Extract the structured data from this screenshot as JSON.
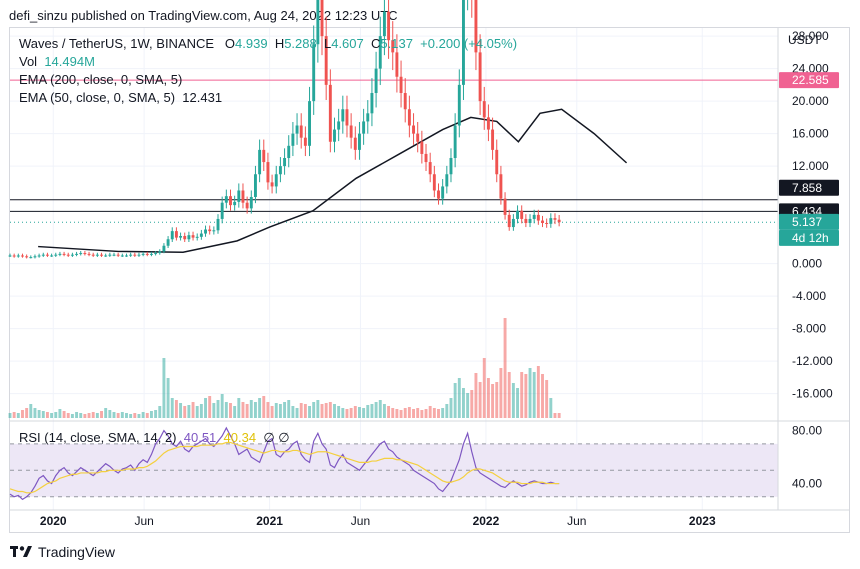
{
  "header": {
    "publisher_line": "defi_sinzu published on TradingView.com, Aug 24, 2022 12:23 UTC"
  },
  "legend": {
    "symbol": "Waves / TetherUS, 1W, BINANCE",
    "o_label": "O",
    "o_value": "4.939",
    "h_label": "H",
    "h_value": "5.288",
    "l_label": "L",
    "l_value": "4.607",
    "c_label": "C",
    "c_value": "5.137",
    "change": "+0.200 (+4.05%)",
    "vol_label": "Vol",
    "vol_value": "14.494M",
    "ema200_label": "EMA (200, close, 0, SMA, 5)",
    "ema50_label": "EMA (50, close, 0, SMA, 5)",
    "ema50_value": "12.431"
  },
  "rsi_legend": {
    "label": "RSI (14, close, SMA, 14, 2)",
    "rsi_value": "40.51",
    "ma_value": "40.34",
    "extra": "∅ ∅"
  },
  "currency": "USDT",
  "brand": {
    "name": "TradingView"
  },
  "colors": {
    "up": "#26a69a",
    "down": "#ef5350",
    "ema50": "#131722",
    "rsi": "#7e57c2",
    "rsi_ma": "#f4d03f",
    "level_pink": "#f06292",
    "rsi_band": "#ede7f6"
  },
  "chart_data": [
    {
      "type": "line",
      "title": "Waves / TetherUS, 1W, BINANCE",
      "price_axis_ticks": [
        "28.000",
        "24.000",
        "20.000",
        "16.000",
        "12.000",
        "0.000",
        "-4.000",
        "-8.000",
        "-12.000",
        "-16.000"
      ],
      "time_axis_ticks": [
        "2020",
        "Jun",
        "2021",
        "Jun",
        "2022",
        "Jun",
        "2023"
      ],
      "ylim": [
        -19,
        29
      ],
      "price_labels": [
        {
          "text": "22.585",
          "value": 22.585,
          "style": "pink"
        },
        {
          "text": "7.858",
          "value": 7.858,
          "style": "black"
        },
        {
          "text": "6.434",
          "value": 6.434,
          "style": "black"
        },
        {
          "text": "5.137",
          "value": 5.137,
          "style": "teal"
        },
        {
          "text": "4d 12h",
          "value": 5.137,
          "style": "teal-sub"
        }
      ],
      "horizontal_lines": [
        {
          "value": 22.585,
          "color": "#f06292"
        },
        {
          "value": 7.858,
          "color": "#131722"
        },
        {
          "value": 6.434,
          "color": "#131722"
        }
      ],
      "series": [
        {
          "name": "Waves / TetherUS",
          "kind": "candles",
          "x_start": 2019.8,
          "x_step": 0.01923,
          "close": [
            1.0,
            0.9,
            1.0,
            0.9,
            0.8,
            0.8,
            0.9,
            1.0,
            1.1,
            1.0,
            1.0,
            1.1,
            1.2,
            1.1,
            1.0,
            1.1,
            1.2,
            1.3,
            1.2,
            1.1,
            1.0,
            1.1,
            1.0,
            1.0,
            1.1,
            1.1,
            1.0,
            1.0,
            1.0,
            1.1,
            1.0,
            1.1,
            1.2,
            1.1,
            1.2,
            1.3,
            1.5,
            2.2,
            3.0,
            4.0,
            3.2,
            3.4,
            3.0,
            3.5,
            3.2,
            3.3,
            3.7,
            4.2,
            4.0,
            4.1,
            5.5,
            7.5,
            8.3,
            7.2,
            7.6,
            9.0,
            7.5,
            6.8,
            8.2,
            11.0,
            14.0,
            12.5,
            10.0,
            9.5,
            11.0,
            12.0,
            13.0,
            14.5,
            16.0,
            17.0,
            15.5,
            14.5,
            20.0,
            27.0,
            35.0,
            28.0,
            22.0,
            15.0,
            16.5,
            17.5,
            19.0,
            17.0,
            15.5,
            14.0,
            16.0,
            17.5,
            18.5,
            21.0,
            24.0,
            28.0,
            31.0,
            27.5,
            26.0,
            23.0,
            21.0,
            19.0,
            17.0,
            16.0,
            15.0,
            13.5,
            12.5,
            11.0,
            9.0,
            8.0,
            9.5,
            11.0,
            13.0,
            17.0,
            22.0,
            34.0,
            38.0,
            33.0,
            26.0,
            20.0,
            18.0,
            16.5,
            14.0,
            11.0,
            8.0,
            6.0,
            4.5,
            5.5,
            6.5,
            5.5,
            5.0,
            5.5,
            6.0,
            5.3,
            5.0,
            4.9,
            5.6,
            5.4,
            5.1
          ]
        },
        {
          "name": "EMA (50, close, 0, SMA, 5)",
          "kind": "line",
          "x": [
            2019.93,
            2020.3,
            2020.6,
            2020.85,
            2021.0,
            2021.2,
            2021.4,
            2021.6,
            2021.8,
            2021.93,
            2022.05,
            2022.15,
            2022.25,
            2022.35,
            2022.5,
            2022.65
          ],
          "values": [
            2.1,
            1.5,
            1.4,
            2.8,
            4.5,
            6.5,
            10.5,
            13.5,
            16.5,
            18.0,
            17.5,
            15.0,
            18.5,
            19.0,
            16.0,
            12.4
          ]
        },
        {
          "name": "Vol",
          "kind": "volume",
          "values_relative": [
            0.05,
            0.06,
            0.05,
            0.08,
            0.1,
            0.14,
            0.1,
            0.08,
            0.07,
            0.06,
            0.05,
            0.06,
            0.09,
            0.07,
            0.05,
            0.04,
            0.06,
            0.05,
            0.04,
            0.05,
            0.06,
            0.05,
            0.07,
            0.1,
            0.08,
            0.06,
            0.05,
            0.06,
            0.05,
            0.04,
            0.05,
            0.04,
            0.06,
            0.05,
            0.07,
            0.08,
            0.12,
            0.6,
            0.4,
            0.2,
            0.18,
            0.15,
            0.12,
            0.13,
            0.16,
            0.12,
            0.14,
            0.2,
            0.22,
            0.15,
            0.18,
            0.24,
            0.16,
            0.15,
            0.12,
            0.2,
            0.16,
            0.14,
            0.18,
            0.16,
            0.2,
            0.22,
            0.16,
            0.12,
            0.15,
            0.14,
            0.16,
            0.18,
            0.12,
            0.1,
            0.15,
            0.14,
            0.12,
            0.16,
            0.18,
            0.14,
            0.15,
            0.16,
            0.14,
            0.12,
            0.1,
            0.09,
            0.1,
            0.12,
            0.11,
            0.1,
            0.13,
            0.14,
            0.16,
            0.18,
            0.14,
            0.12,
            0.1,
            0.09,
            0.08,
            0.1,
            0.11,
            0.09,
            0.1,
            0.08,
            0.09,
            0.12,
            0.1,
            0.09,
            0.1,
            0.14,
            0.2,
            0.35,
            0.4,
            0.3,
            0.25,
            0.28,
            0.45,
            0.36,
            0.6,
            0.4,
            0.34,
            0.36,
            0.5,
            1.0,
            0.46,
            0.35,
            0.3,
            0.46,
            0.44,
            0.5,
            0.46,
            0.52,
            0.44,
            0.38,
            0.2
          ]
        }
      ]
    },
    {
      "type": "line",
      "title": "RSI (14, close, SMA, 14, 2)",
      "y_axis_ticks": [
        "80.00",
        "40.00"
      ],
      "ylim": [
        20,
        85
      ],
      "bands": [
        30,
        50,
        70
      ],
      "series": [
        {
          "name": "RSI",
          "x_start": 2019.8,
          "x_step": 0.01923,
          "values": [
            32,
            30,
            31,
            28,
            30,
            33,
            38,
            44,
            46,
            42,
            40,
            46,
            50,
            52,
            48,
            46,
            49,
            52,
            50,
            48,
            46,
            49,
            52,
            55,
            53,
            50,
            48,
            51,
            52,
            54,
            50,
            55,
            58,
            56,
            62,
            70,
            74,
            80,
            76,
            70,
            68,
            72,
            66,
            64,
            68,
            70,
            72,
            74,
            70,
            68,
            72,
            76,
            82,
            76,
            70,
            62,
            64,
            66,
            60,
            58,
            56,
            64,
            72,
            74,
            62,
            60,
            64,
            66,
            70,
            72,
            62,
            58,
            56,
            72,
            78,
            70,
            66,
            54,
            52,
            58,
            62,
            56,
            54,
            52,
            50,
            54,
            58,
            62,
            66,
            70,
            72,
            66,
            64,
            60,
            58,
            56,
            54,
            50,
            48,
            46,
            44,
            42,
            40,
            36,
            34,
            38,
            42,
            50,
            58,
            70,
            78,
            64,
            52,
            48,
            46,
            44,
            42,
            40,
            38,
            37,
            40,
            42,
            40,
            38,
            39,
            41,
            42,
            41,
            40,
            40,
            41,
            40,
            40
          ]
        },
        {
          "name": "RSI MA",
          "x_start": 2019.8,
          "x_step": 0.01923,
          "values": [
            36,
            35,
            34,
            34,
            33,
            33,
            34,
            36,
            38,
            40,
            41,
            42,
            44,
            45,
            46,
            47,
            47,
            48,
            48,
            48,
            48,
            48,
            49,
            49,
            50,
            50,
            50,
            50,
            51,
            51,
            51,
            52,
            52,
            53,
            55,
            57,
            60,
            63,
            65,
            66,
            67,
            68,
            68,
            68,
            68,
            68,
            69,
            69,
            69,
            69,
            70,
            70,
            71,
            71,
            70,
            69,
            68,
            67,
            66,
            65,
            64,
            63,
            64,
            65,
            65,
            64,
            64,
            64,
            65,
            65,
            64,
            63,
            62,
            63,
            64,
            64,
            64,
            63,
            62,
            61,
            60,
            59,
            58,
            57,
            56,
            56,
            56,
            57,
            57,
            58,
            59,
            59,
            59,
            58,
            58,
            57,
            56,
            55,
            54,
            52,
            50,
            48,
            46,
            44,
            42,
            41,
            41,
            42,
            43,
            45,
            48,
            50,
            51,
            51,
            50,
            49,
            48,
            46,
            44,
            42,
            41,
            41,
            41,
            40,
            40,
            40,
            41,
            41,
            41,
            40,
            40,
            40,
            40
          ]
        }
      ]
    }
  ]
}
